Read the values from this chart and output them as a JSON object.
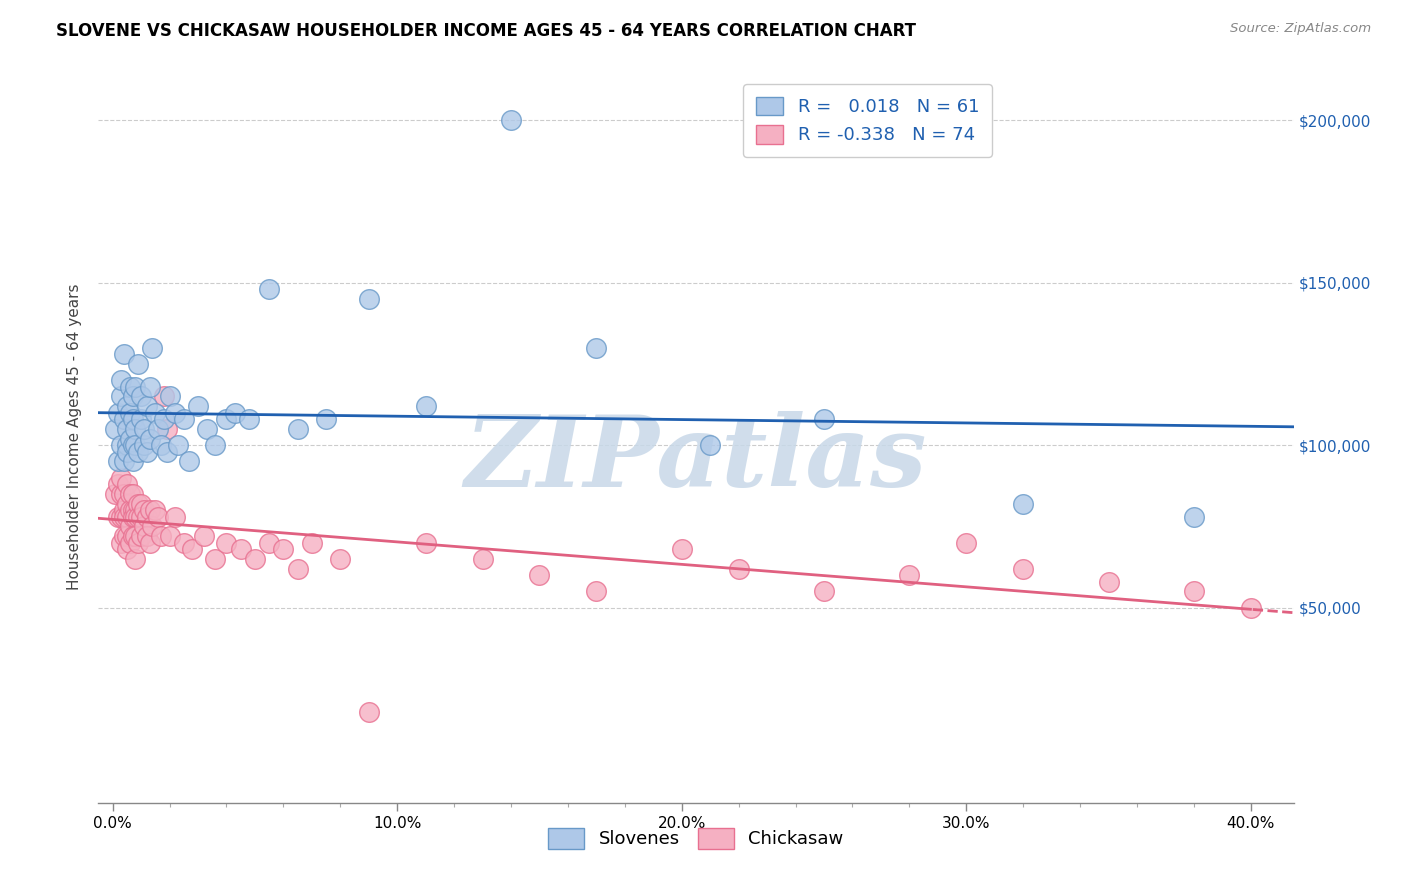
{
  "title": "SLOVENE VS CHICKASAW HOUSEHOLDER INCOME AGES 45 - 64 YEARS CORRELATION CHART",
  "source": "Source: ZipAtlas.com",
  "ylabel": "Householder Income Ages 45 - 64 years",
  "xlabel_ticks": [
    "0.0%",
    "",
    "",
    "",
    "",
    "10.0%",
    "",
    "",
    "",
    "",
    "20.0%",
    "",
    "",
    "",
    "",
    "30.0%",
    "",
    "",
    "",
    "",
    "40.0%"
  ],
  "xlabel_tick_vals": [
    0.0,
    0.02,
    0.04,
    0.06,
    0.08,
    0.1,
    0.12,
    0.14,
    0.16,
    0.18,
    0.2,
    0.22,
    0.24,
    0.26,
    0.28,
    0.3,
    0.32,
    0.34,
    0.36,
    0.38,
    0.4
  ],
  "ytick_vals": [
    0,
    50000,
    100000,
    150000,
    200000
  ],
  "ytick_right_labels": [
    "",
    "$50,000",
    "$100,000",
    "$150,000",
    "$200,000"
  ],
  "xlim": [
    -0.005,
    0.415
  ],
  "ylim": [
    -10000,
    215000
  ],
  "legend_slovene_R": " 0.018",
  "legend_slovene_N": "61",
  "legend_chickasaw_R": "-0.338",
  "legend_chickasaw_N": "74",
  "slovene_scatter_color": "#aec8e8",
  "slovene_edge_color": "#6899c8",
  "chickasaw_scatter_color": "#f5b0c2",
  "chickasaw_edge_color": "#e87090",
  "slovene_line_color": "#2060b0",
  "chickasaw_line_color": "#e06080",
  "watermark_text": "ZIPatlas",
  "watermark_color": "#c8d8e8",
  "slovene_x": [
    0.001,
    0.002,
    0.002,
    0.003,
    0.003,
    0.003,
    0.004,
    0.004,
    0.004,
    0.005,
    0.005,
    0.005,
    0.005,
    0.006,
    0.006,
    0.006,
    0.007,
    0.007,
    0.007,
    0.007,
    0.008,
    0.008,
    0.008,
    0.009,
    0.009,
    0.01,
    0.01,
    0.011,
    0.011,
    0.012,
    0.012,
    0.013,
    0.013,
    0.014,
    0.015,
    0.016,
    0.017,
    0.018,
    0.019,
    0.02,
    0.022,
    0.023,
    0.025,
    0.027,
    0.03,
    0.033,
    0.036,
    0.04,
    0.043,
    0.048,
    0.055,
    0.065,
    0.075,
    0.09,
    0.11,
    0.14,
    0.17,
    0.21,
    0.25,
    0.32,
    0.38
  ],
  "slovene_y": [
    105000,
    110000,
    95000,
    115000,
    120000,
    100000,
    108000,
    95000,
    128000,
    100000,
    112000,
    105000,
    98000,
    110000,
    102000,
    118000,
    108000,
    100000,
    115000,
    95000,
    118000,
    105000,
    100000,
    125000,
    98000,
    108000,
    115000,
    100000,
    105000,
    112000,
    98000,
    118000,
    102000,
    130000,
    110000,
    105000,
    100000,
    108000,
    98000,
    115000,
    110000,
    100000,
    108000,
    95000,
    112000,
    105000,
    100000,
    108000,
    110000,
    108000,
    148000,
    105000,
    108000,
    145000,
    112000,
    200000,
    130000,
    100000,
    108000,
    82000,
    78000
  ],
  "chickasaw_x": [
    0.001,
    0.002,
    0.002,
    0.003,
    0.003,
    0.003,
    0.003,
    0.004,
    0.004,
    0.004,
    0.004,
    0.005,
    0.005,
    0.005,
    0.005,
    0.005,
    0.006,
    0.006,
    0.006,
    0.006,
    0.007,
    0.007,
    0.007,
    0.007,
    0.008,
    0.008,
    0.008,
    0.008,
    0.009,
    0.009,
    0.009,
    0.01,
    0.01,
    0.01,
    0.011,
    0.011,
    0.012,
    0.012,
    0.013,
    0.013,
    0.014,
    0.015,
    0.016,
    0.017,
    0.018,
    0.019,
    0.02,
    0.022,
    0.025,
    0.028,
    0.032,
    0.036,
    0.04,
    0.045,
    0.05,
    0.055,
    0.06,
    0.065,
    0.07,
    0.08,
    0.09,
    0.11,
    0.13,
    0.15,
    0.17,
    0.2,
    0.22,
    0.25,
    0.28,
    0.3,
    0.32,
    0.35,
    0.38,
    0.4
  ],
  "chickasaw_y": [
    85000,
    88000,
    78000,
    85000,
    90000,
    78000,
    70000,
    85000,
    80000,
    78000,
    72000,
    82000,
    88000,
    78000,
    72000,
    68000,
    85000,
    80000,
    75000,
    70000,
    80000,
    85000,
    78000,
    72000,
    80000,
    78000,
    72000,
    65000,
    82000,
    78000,
    70000,
    82000,
    78000,
    72000,
    80000,
    75000,
    78000,
    72000,
    80000,
    70000,
    75000,
    80000,
    78000,
    72000,
    115000,
    105000,
    72000,
    78000,
    70000,
    68000,
    72000,
    65000,
    70000,
    68000,
    65000,
    70000,
    68000,
    62000,
    70000,
    65000,
    18000,
    70000,
    65000,
    60000,
    55000,
    68000,
    62000,
    55000,
    60000,
    70000,
    62000,
    58000,
    55000,
    50000
  ]
}
